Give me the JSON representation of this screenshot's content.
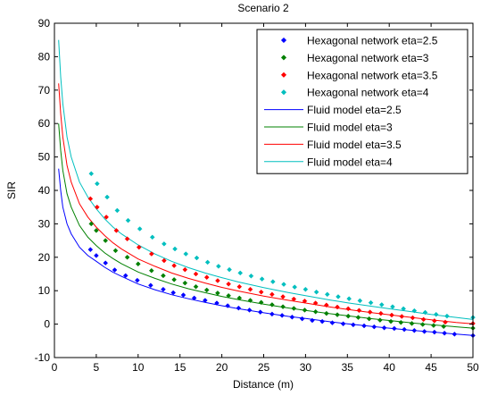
{
  "chart_data": {
    "type": "scatter",
    "title": "Scenario 2",
    "xlabel": "Distance (m)",
    "ylabel": "SIR",
    "xlim": [
      0,
      50
    ],
    "ylim": [
      -10,
      90
    ],
    "xticks": [
      0,
      5,
      10,
      15,
      20,
      25,
      30,
      35,
      40,
      45,
      50
    ],
    "yticks": [
      -10,
      0,
      10,
      20,
      30,
      40,
      50,
      60,
      70,
      80,
      90
    ],
    "grid": false,
    "legend_position": "top-right",
    "series": [
      {
        "name": "Hexagonal network eta=2.5",
        "kind": "marker",
        "color": "#0000ff",
        "points": [
          [
            4.3,
            22.3
          ],
          [
            5.0,
            20.5
          ],
          [
            6.1,
            18.3
          ],
          [
            7.2,
            16.2
          ],
          [
            8.5,
            14.5
          ],
          [
            9.9,
            13.1
          ],
          [
            11.5,
            11.6
          ],
          [
            13.0,
            10.4
          ],
          [
            14.2,
            9.4
          ],
          [
            15.4,
            8.7
          ],
          [
            16.7,
            7.8
          ],
          [
            18.0,
            7.1
          ],
          [
            19.4,
            6.3
          ],
          [
            20.7,
            5.5
          ],
          [
            22.0,
            4.8
          ],
          [
            23.3,
            4.2
          ],
          [
            24.6,
            3.6
          ],
          [
            26.0,
            3.0
          ],
          [
            27.2,
            2.6
          ],
          [
            28.4,
            2.1
          ],
          [
            29.6,
            1.6
          ],
          [
            30.8,
            1.1
          ],
          [
            32.0,
            0.8
          ],
          [
            33.2,
            0.4
          ],
          [
            34.5,
            0.1
          ],
          [
            35.7,
            -0.2
          ],
          [
            37.0,
            -0.5
          ],
          [
            38.2,
            -0.8
          ],
          [
            39.4,
            -1.1
          ],
          [
            40.6,
            -1.3
          ],
          [
            41.8,
            -1.6
          ],
          [
            43.0,
            -1.9
          ],
          [
            44.2,
            -2.2
          ],
          [
            45.4,
            -2.4
          ],
          [
            46.6,
            -2.7
          ],
          [
            47.8,
            -3.0
          ],
          [
            50.0,
            -3.4
          ]
        ]
      },
      {
        "name": "Hexagonal network eta=3",
        "kind": "marker",
        "color": "#008000",
        "points": [
          [
            4.4,
            30.0
          ],
          [
            5.0,
            28.0
          ],
          [
            6.1,
            25.0
          ],
          [
            7.3,
            22.0
          ],
          [
            8.7,
            20.0
          ],
          [
            10.0,
            18.0
          ],
          [
            11.6,
            16.0
          ],
          [
            13.0,
            14.5
          ],
          [
            14.3,
            13.3
          ],
          [
            15.6,
            12.3
          ],
          [
            16.9,
            11.2
          ],
          [
            18.2,
            10.2
          ],
          [
            19.5,
            9.3
          ],
          [
            20.8,
            8.5
          ],
          [
            22.1,
            7.8
          ],
          [
            23.4,
            7.1
          ],
          [
            24.7,
            6.5
          ],
          [
            26.0,
            5.8
          ],
          [
            27.3,
            5.2
          ],
          [
            28.6,
            4.7
          ],
          [
            29.9,
            4.2
          ],
          [
            31.2,
            3.7
          ],
          [
            32.5,
            3.2
          ],
          [
            33.8,
            2.8
          ],
          [
            35.1,
            2.4
          ],
          [
            36.3,
            2.0
          ],
          [
            37.6,
            1.6
          ],
          [
            38.9,
            1.2
          ],
          [
            40.2,
            0.8
          ],
          [
            41.4,
            0.5
          ],
          [
            42.7,
            0.2
          ],
          [
            44.0,
            -0.1
          ],
          [
            45.3,
            -0.4
          ],
          [
            46.5,
            -0.7
          ],
          [
            50.0,
            -1.2
          ]
        ]
      },
      {
        "name": "Hexagonal network eta=3.5",
        "kind": "marker",
        "color": "#ff0000",
        "points": [
          [
            4.3,
            37.5
          ],
          [
            5.1,
            35.0
          ],
          [
            6.2,
            32.0
          ],
          [
            7.4,
            28.0
          ],
          [
            8.7,
            25.5
          ],
          [
            10.1,
            23.0
          ],
          [
            11.6,
            21.0
          ],
          [
            13.1,
            19.0
          ],
          [
            14.3,
            17.5
          ],
          [
            15.6,
            16.3
          ],
          [
            16.9,
            15.0
          ],
          [
            18.2,
            14.0
          ],
          [
            19.5,
            13.0
          ],
          [
            20.8,
            12.0
          ],
          [
            22.1,
            11.2
          ],
          [
            23.4,
            10.4
          ],
          [
            24.7,
            9.6
          ],
          [
            26.0,
            8.9
          ],
          [
            27.3,
            8.2
          ],
          [
            28.6,
            7.5
          ],
          [
            29.9,
            6.9
          ],
          [
            31.2,
            6.3
          ],
          [
            32.5,
            5.7
          ],
          [
            33.8,
            5.1
          ],
          [
            35.1,
            4.6
          ],
          [
            36.4,
            4.1
          ],
          [
            37.7,
            3.6
          ],
          [
            39.0,
            3.2
          ],
          [
            40.3,
            2.7
          ],
          [
            41.5,
            2.3
          ],
          [
            42.8,
            1.9
          ],
          [
            44.1,
            1.4
          ],
          [
            45.4,
            1.0
          ],
          [
            46.7,
            0.6
          ],
          [
            50.0,
            0.2
          ]
        ]
      },
      {
        "name": "Hexagonal network eta=4",
        "kind": "marker",
        "color": "#00bfbf",
        "points": [
          [
            4.4,
            45.0
          ],
          [
            5.1,
            42.0
          ],
          [
            6.3,
            38.0
          ],
          [
            7.5,
            34.0
          ],
          [
            8.8,
            31.0
          ],
          [
            10.2,
            28.5
          ],
          [
            11.7,
            26.0
          ],
          [
            13.1,
            24.0
          ],
          [
            14.4,
            22.5
          ],
          [
            15.7,
            21.0
          ],
          [
            17.0,
            19.8
          ],
          [
            18.3,
            18.5
          ],
          [
            19.6,
            17.3
          ],
          [
            20.9,
            16.3
          ],
          [
            22.2,
            15.3
          ],
          [
            23.5,
            14.4
          ],
          [
            24.8,
            13.5
          ],
          [
            26.1,
            12.7
          ],
          [
            27.4,
            11.9
          ],
          [
            28.7,
            11.1
          ],
          [
            30.0,
            10.4
          ],
          [
            31.3,
            9.6
          ],
          [
            32.6,
            8.9
          ],
          [
            33.9,
            8.2
          ],
          [
            35.2,
            7.6
          ],
          [
            36.5,
            7.0
          ],
          [
            37.8,
            6.4
          ],
          [
            39.1,
            5.8
          ],
          [
            40.4,
            5.2
          ],
          [
            41.7,
            4.6
          ],
          [
            43.0,
            4.0
          ],
          [
            44.3,
            3.5
          ],
          [
            45.6,
            2.9
          ],
          [
            46.9,
            2.4
          ],
          [
            50.0,
            2.0
          ]
        ]
      },
      {
        "name": "Fluid model eta=2.5",
        "kind": "line",
        "color": "#0000ff",
        "points": [
          [
            0.5,
            46.5
          ],
          [
            0.75,
            40
          ],
          [
            1,
            35
          ],
          [
            1.5,
            30
          ],
          [
            2,
            27
          ],
          [
            3,
            23
          ],
          [
            4,
            20.5
          ],
          [
            5,
            18.8
          ],
          [
            6,
            17
          ],
          [
            7,
            15.5
          ],
          [
            8,
            14.3
          ],
          [
            10,
            12
          ],
          [
            12,
            10.3
          ],
          [
            14,
            8.8
          ],
          [
            16,
            7.6
          ],
          [
            18,
            6.5
          ],
          [
            20,
            5.5
          ],
          [
            22,
            4.6
          ],
          [
            25,
            3.4
          ],
          [
            28,
            2.3
          ],
          [
            30,
            1.7
          ],
          [
            33,
            0.7
          ],
          [
            35,
            0.1
          ],
          [
            38,
            -0.7
          ],
          [
            40,
            -1.2
          ],
          [
            43,
            -1.9
          ],
          [
            45,
            -2.3
          ],
          [
            48,
            -3
          ],
          [
            50,
            -3.4
          ]
        ]
      },
      {
        "name": "Fluid model eta=3",
        "kind": "line",
        "color": "#008000",
        "points": [
          [
            0.5,
            60
          ],
          [
            0.75,
            52
          ],
          [
            1,
            46
          ],
          [
            1.5,
            39
          ],
          [
            2,
            35
          ],
          [
            3,
            29.5
          ],
          [
            4,
            26
          ],
          [
            5,
            23.5
          ],
          [
            6,
            21.3
          ],
          [
            7,
            19.6
          ],
          [
            8,
            18.1
          ],
          [
            10,
            15.6
          ],
          [
            12,
            13.7
          ],
          [
            14,
            12
          ],
          [
            16,
            10.6
          ],
          [
            18,
            9.4
          ],
          [
            20,
            8.3
          ],
          [
            22,
            7.3
          ],
          [
            25,
            6
          ],
          [
            28,
            4.8
          ],
          [
            30,
            4.1
          ],
          [
            33,
            3.1
          ],
          [
            35,
            2.5
          ],
          [
            38,
            1.6
          ],
          [
            40,
            1.1
          ],
          [
            43,
            0.3
          ],
          [
            45,
            -0.2
          ],
          [
            48,
            -0.8
          ],
          [
            50,
            -1.2
          ]
        ]
      },
      {
        "name": "Fluid model eta=3.5",
        "kind": "line",
        "color": "#ff0000",
        "points": [
          [
            0.5,
            72
          ],
          [
            0.75,
            63
          ],
          [
            1,
            56
          ],
          [
            1.5,
            47.5
          ],
          [
            2,
            42.5
          ],
          [
            3,
            36
          ],
          [
            4,
            32
          ],
          [
            5,
            29
          ],
          [
            6,
            26.5
          ],
          [
            7,
            24.3
          ],
          [
            8,
            22.5
          ],
          [
            10,
            19.5
          ],
          [
            12,
            17.3
          ],
          [
            14,
            15.3
          ],
          [
            16,
            13.7
          ],
          [
            18,
            12.3
          ],
          [
            20,
            11
          ],
          [
            22,
            9.9
          ],
          [
            25,
            8.4
          ],
          [
            28,
            7.1
          ],
          [
            30,
            6.3
          ],
          [
            33,
            5.1
          ],
          [
            35,
            4.4
          ],
          [
            38,
            3.4
          ],
          [
            40,
            2.8
          ],
          [
            43,
            1.9
          ],
          [
            45,
            1.3
          ],
          [
            48,
            0.5
          ],
          [
            50,
            0.1
          ]
        ]
      },
      {
        "name": "Fluid model eta=4",
        "kind": "line",
        "color": "#00bfbf",
        "points": [
          [
            0.5,
            85
          ],
          [
            0.75,
            74
          ],
          [
            1,
            66
          ],
          [
            1.5,
            56
          ],
          [
            2,
            50
          ],
          [
            3,
            42.5
          ],
          [
            4,
            38
          ],
          [
            5,
            34.5
          ],
          [
            6,
            31.5
          ],
          [
            7,
            29
          ],
          [
            8,
            27
          ],
          [
            10,
            23.7
          ],
          [
            12,
            21
          ],
          [
            14,
            18.8
          ],
          [
            16,
            16.9
          ],
          [
            18,
            15.3
          ],
          [
            20,
            13.9
          ],
          [
            22,
            12.6
          ],
          [
            25,
            10.9
          ],
          [
            28,
            9.4
          ],
          [
            30,
            8.5
          ],
          [
            33,
            7.2
          ],
          [
            35,
            6.4
          ],
          [
            38,
            5.3
          ],
          [
            40,
            4.6
          ],
          [
            43,
            3.6
          ],
          [
            45,
            2.9
          ],
          [
            48,
            2
          ],
          [
            50,
            1.4
          ]
        ]
      }
    ]
  }
}
